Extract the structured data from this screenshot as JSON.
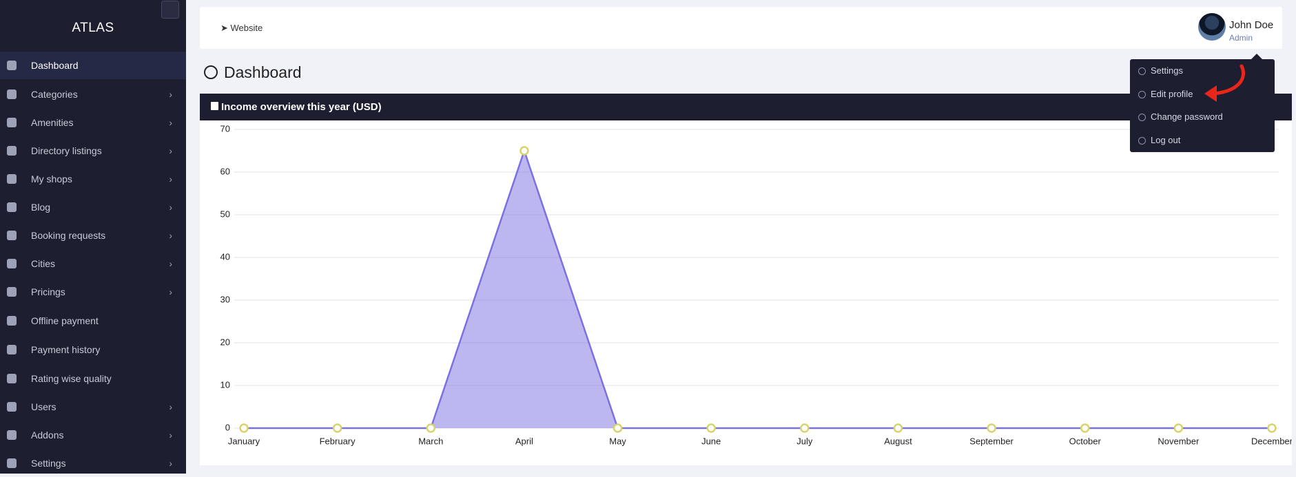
{
  "sidebar": {
    "brand": "ATLAS",
    "items": [
      {
        "label": "Dashboard",
        "active": true,
        "submenu": false
      },
      {
        "label": "Categories",
        "active": false,
        "submenu": true
      },
      {
        "label": "Amenities",
        "active": false,
        "submenu": true
      },
      {
        "label": "Directory listings",
        "active": false,
        "submenu": true
      },
      {
        "label": "My shops",
        "active": false,
        "submenu": true
      },
      {
        "label": "Blog",
        "active": false,
        "submenu": true
      },
      {
        "label": "Booking requests",
        "active": false,
        "submenu": true
      },
      {
        "label": "Cities",
        "active": false,
        "submenu": true
      },
      {
        "label": "Pricings",
        "active": false,
        "submenu": true
      },
      {
        "label": "Offline payment",
        "active": false,
        "submenu": false
      },
      {
        "label": "Payment history",
        "active": false,
        "submenu": false
      },
      {
        "label": "Rating wise quality",
        "active": false,
        "submenu": false
      },
      {
        "label": "Users",
        "active": false,
        "submenu": true
      },
      {
        "label": "Addons",
        "active": false,
        "submenu": true
      },
      {
        "label": "Settings",
        "active": false,
        "submenu": true
      }
    ]
  },
  "header": {
    "website": "Website",
    "user_name": "John Doe",
    "user_role": "Admin"
  },
  "page_title": "Dashboard",
  "dropdown": {
    "items": [
      "Settings",
      "Edit profile",
      "Change password",
      "Log out"
    ]
  },
  "chart_data": {
    "type": "area",
    "title": "Income overview this year (USD)",
    "categories": [
      "January",
      "February",
      "March",
      "April",
      "May",
      "June",
      "July",
      "August",
      "September",
      "October",
      "November",
      "December"
    ],
    "values": [
      0,
      0,
      0,
      65,
      0,
      0,
      0,
      0,
      0,
      0,
      0,
      0
    ],
    "color": "#7b70e0",
    "ylim": [
      0,
      70
    ],
    "yticks": [
      0,
      10,
      20,
      30,
      40,
      50,
      60,
      70
    ],
    "grid": true
  }
}
